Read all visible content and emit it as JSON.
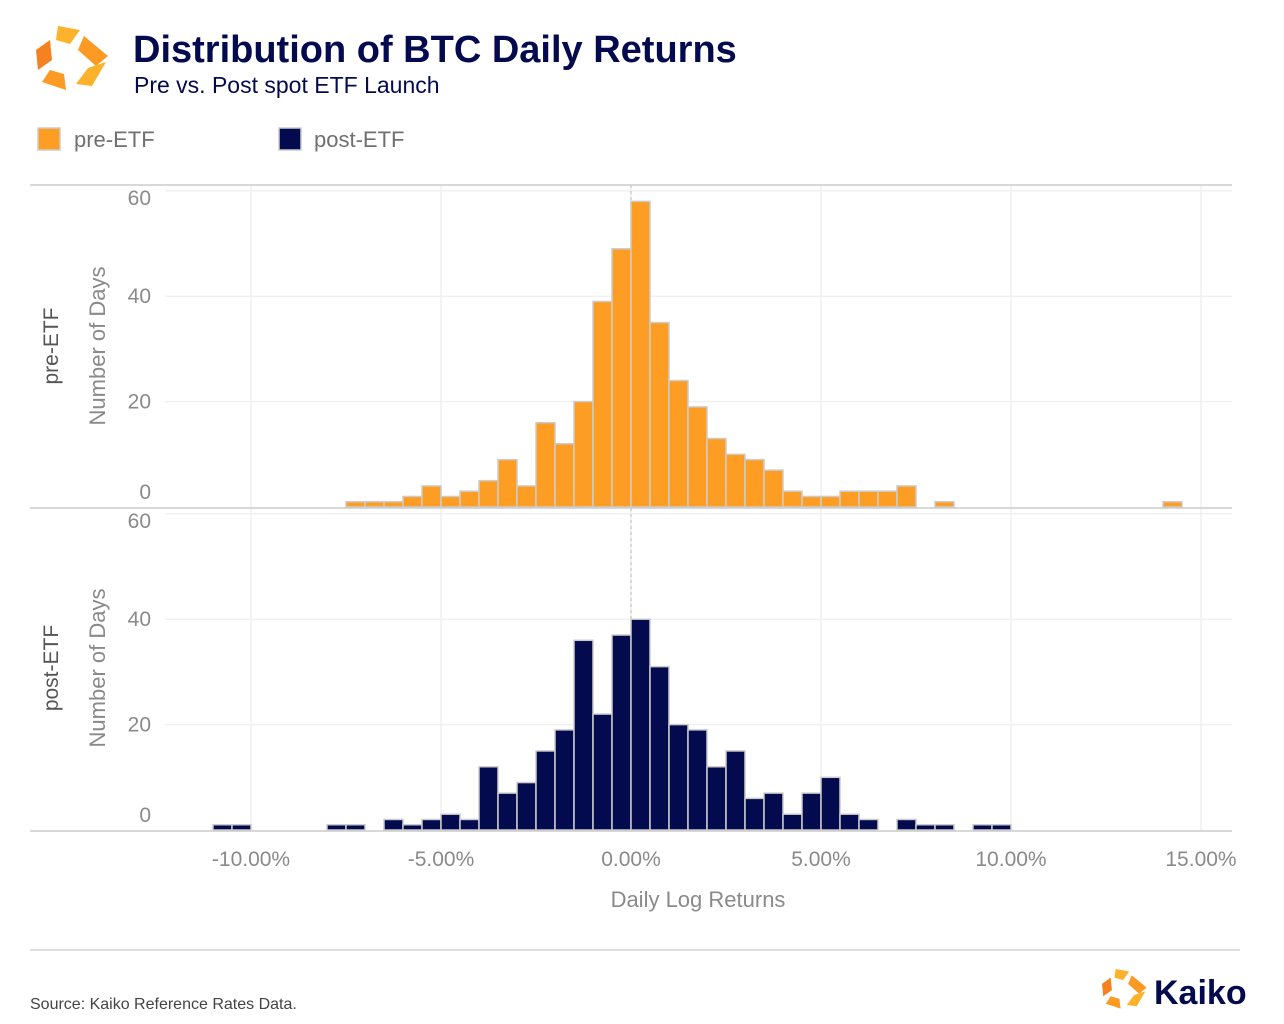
{
  "header": {
    "title": "Distribution of BTC Daily Returns",
    "subtitle": "Pre vs. Post spot ETF Launch"
  },
  "legend": [
    {
      "label": "pre-ETF",
      "color": "#fd9d24"
    },
    {
      "label": "post-ETF",
      "color": "#040a4e"
    }
  ],
  "footer": {
    "source": "Source: Kaiko Reference Rates Data.",
    "brand": "Kaiko"
  },
  "chart_data": {
    "type": "bar",
    "subtype": "histogram-faceted",
    "xlabel": "Daily Log Returns",
    "ylabel": "Number of Days",
    "x_unit": "%",
    "bin_width": 0.5,
    "x_ticks": [
      "-10.00%",
      "-5.00%",
      "0.00%",
      "5.00%",
      "10.00%",
      "15.00%"
    ],
    "x_tick_values": [
      -10,
      -5,
      0,
      5,
      10,
      15
    ],
    "y_ticks": [
      "0",
      "20",
      "40",
      "60"
    ],
    "y_tick_values": [
      0,
      20,
      40,
      60
    ],
    "ylim": [
      0,
      60
    ],
    "xlim": [
      -12.5,
      16
    ],
    "grid": true,
    "reference_line_x": 0,
    "legend_position": "top-left",
    "bar_outline_color": "#cccccc",
    "series": [
      {
        "name": "pre-ETF",
        "color": "#fd9d24",
        "bin_starts": [
          -7.5,
          -7,
          -6.5,
          -6,
          -5.5,
          -5,
          -4.5,
          -4,
          -3.5,
          -3,
          -2.5,
          -2,
          -1.5,
          -1,
          -0.5,
          0,
          0.5,
          1,
          1.5,
          2,
          2.5,
          3,
          3.5,
          4,
          4.5,
          5,
          5.5,
          6,
          6.5,
          7,
          7.5,
          8,
          14
        ],
        "counts": [
          1,
          1,
          1,
          2,
          4,
          2,
          3,
          5,
          9,
          4,
          16,
          12,
          20,
          39,
          49,
          58,
          35,
          24,
          19,
          13,
          10,
          9,
          7,
          3,
          2,
          2,
          3,
          3,
          3,
          4,
          0,
          1,
          1
        ]
      },
      {
        "name": "post-ETF",
        "color": "#040a4e",
        "bin_starts": [
          -11,
          -10.5,
          -8,
          -7.5,
          -6.5,
          -6,
          -5.5,
          -5,
          -4.5,
          -4,
          -3.5,
          -3,
          -2.5,
          -2,
          -1.5,
          -1,
          -0.5,
          0,
          0.5,
          1,
          1.5,
          2,
          2.5,
          3,
          3.5,
          4,
          4.5,
          5,
          5.5,
          6,
          7,
          7.5,
          8,
          9,
          9.5
        ],
        "counts": [
          1,
          1,
          1,
          1,
          2,
          1,
          2,
          3,
          2,
          12,
          7,
          9,
          15,
          19,
          36,
          22,
          37,
          40,
          31,
          20,
          19,
          12,
          15,
          6,
          7,
          3,
          7,
          10,
          3,
          2,
          2,
          1,
          1,
          1,
          1
        ]
      }
    ]
  }
}
